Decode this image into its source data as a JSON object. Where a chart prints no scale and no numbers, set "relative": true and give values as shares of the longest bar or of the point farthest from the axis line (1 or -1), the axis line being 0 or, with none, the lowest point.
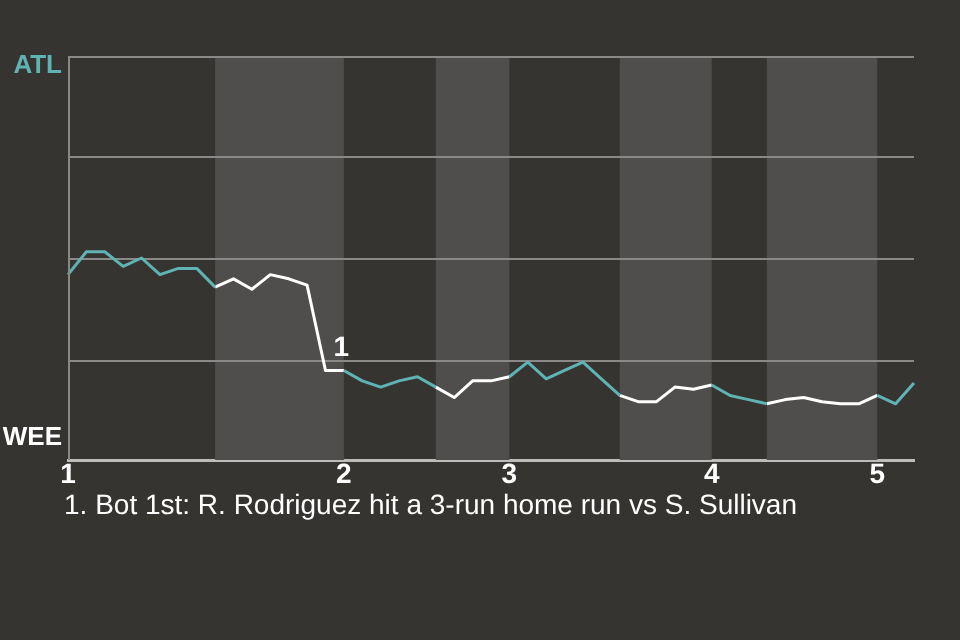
{
  "chart_data": {
    "type": "line",
    "relative": true,
    "categories": [
      "1",
      null,
      null,
      null,
      null,
      null,
      null,
      null,
      null,
      null,
      null,
      null,
      null,
      null,
      null,
      "2",
      null,
      null,
      null,
      null,
      null,
      null,
      null,
      null,
      "3",
      null,
      null,
      null,
      null,
      null,
      null,
      null,
      null,
      null,
      null,
      "4",
      null,
      null,
      null,
      null,
      null,
      null,
      null,
      null,
      "5",
      null,
      null
    ],
    "series": [
      {
        "color": "#5fb3b3",
        "values": [
          0.89,
          1,
          1,
          0.93,
          0.97,
          0.89,
          0.92,
          0.92,
          0.83,
          null,
          null,
          null,
          null,
          null,
          null,
          0.43,
          0.38,
          0.35,
          0.38,
          0.4,
          0.35,
          null,
          null,
          null,
          0.4,
          0.47,
          0.39,
          0.43,
          0.47,
          0.39,
          0.31,
          null,
          null,
          null,
          null,
          0.36,
          0.31,
          0.29,
          0.27,
          null,
          null,
          null,
          null,
          null,
          0.31,
          0.27,
          0.37
        ]
      },
      {
        "color": "#ffffff",
        "values": [
          null,
          null,
          null,
          null,
          null,
          null,
          null,
          null,
          0.83,
          0.87,
          0.82,
          0.89,
          0.87,
          0.84,
          0.43,
          0.43,
          null,
          null,
          null,
          null,
          0.35,
          0.3,
          0.38,
          0.38,
          0.4,
          null,
          null,
          null,
          null,
          null,
          0.31,
          0.28,
          0.28,
          0.35,
          0.34,
          0.36,
          null,
          null,
          0.27,
          0.29,
          0.3,
          0.28,
          0.27,
          0.27,
          0.31,
          null,
          null
        ]
      }
    ],
    "ref_lines": [
      {
        "axis": "y",
        "value": 0.485,
        "color": "#8a8987"
      },
      {
        "axis": "y",
        "value": 0.97,
        "color": "#8a8987"
      },
      {
        "axis": "y",
        "value": 1.455,
        "color": "#8a8987"
      }
    ],
    "marker": "none",
    "line_style": "solid",
    "legend": false,
    "annotations": [
      "ATL",
      "WEE",
      "1",
      "1. Bot 1st: R. Rodriguez hit a 3-run home run vs S. Sullivan"
    ]
  }
}
